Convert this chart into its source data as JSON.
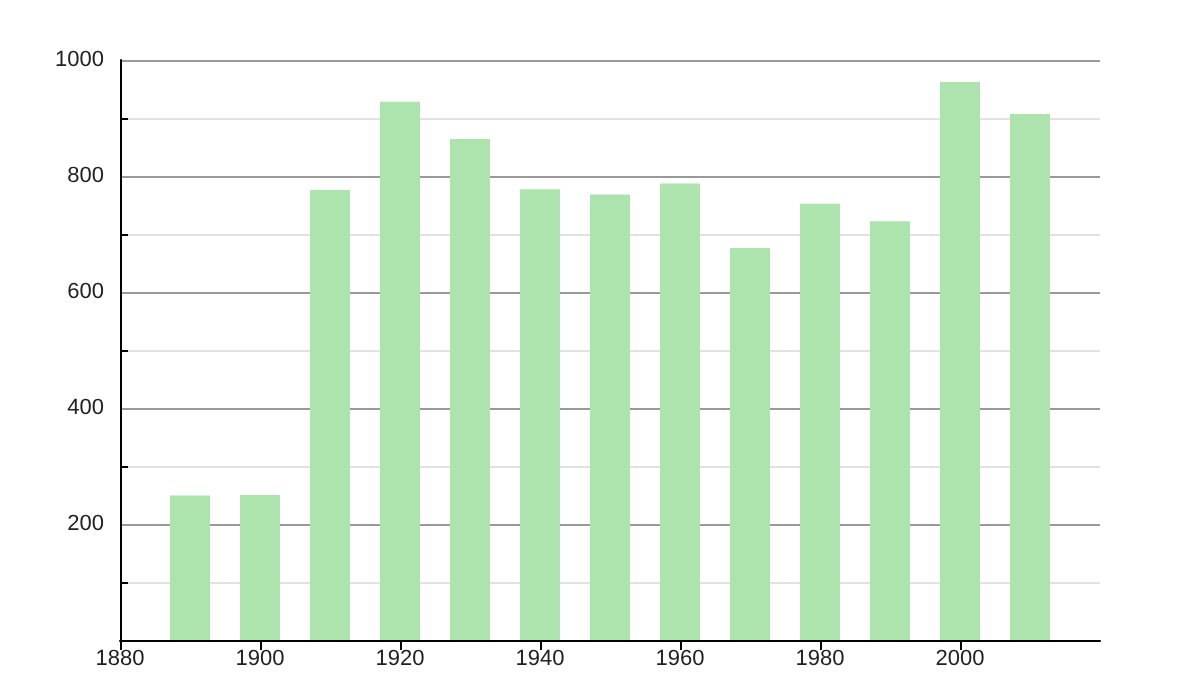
{
  "chart_data": {
    "type": "bar",
    "x": [
      1890,
      1900,
      1910,
      1920,
      1930,
      1940,
      1950,
      1960,
      1970,
      1980,
      1990,
      2000,
      2010
    ],
    "values": [
      249,
      250,
      776,
      928,
      864,
      777,
      768,
      787,
      676,
      752,
      722,
      962,
      907
    ],
    "color": "#ade4ad",
    "xlim": [
      1880,
      2020
    ],
    "xticks": [
      1880,
      1900,
      1920,
      1940,
      1960,
      1980,
      2000
    ],
    "ylim": [
      0,
      1000
    ],
    "yticks": [
      {
        "value": 100,
        "label": null
      },
      200,
      {
        "value": 300,
        "label": null
      },
      400,
      {
        "value": 500,
        "label": null
      },
      600,
      {
        "value": 700,
        "label": null
      },
      800,
      {
        "value": 900,
        "label": null
      },
      1000
    ],
    "grid": "y"
  }
}
